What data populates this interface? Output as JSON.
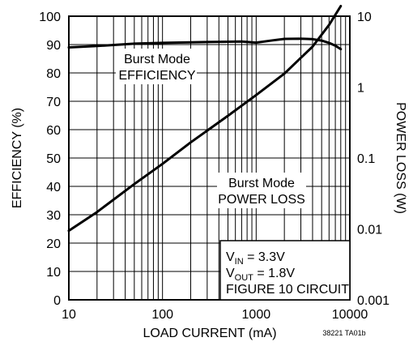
{
  "chart_data": {
    "type": "line",
    "x_axis": {
      "label": "LOAD CURRENT (mA)",
      "scale": "log",
      "range": [
        10,
        10000
      ],
      "tick_labels": [
        "10",
        "100",
        "1000",
        "10000"
      ]
    },
    "y_left": {
      "label": "EFFICIENCY (%)",
      "range": [
        0,
        100
      ],
      "tick_labels": [
        "0",
        "10",
        "20",
        "30",
        "40",
        "50",
        "60",
        "70",
        "80",
        "90",
        "100"
      ]
    },
    "y_right": {
      "label": "POWER LOSS (W)",
      "scale": "log",
      "range": [
        0.001,
        10
      ],
      "tick_labels": [
        "0.001",
        "0.01",
        "0.1",
        "1",
        "10"
      ]
    },
    "series": [
      {
        "axis": "left",
        "x": [
          10,
          20,
          50,
          100,
          200,
          500,
          700,
          1000,
          1500,
          2000,
          3000,
          4000,
          5000,
          6000,
          7000,
          8000
        ],
        "values": [
          89,
          89.5,
          90.3,
          90.6,
          90.8,
          91,
          91.1,
          90.7,
          91.5,
          92,
          92.1,
          91.9,
          91.4,
          90.6,
          89.6,
          88.4
        ]
      },
      {
        "axis": "right",
        "x": [
          10,
          20,
          50,
          100,
          200,
          500,
          1000,
          2000,
          4000,
          6000,
          8000
        ],
        "values": [
          0.00942,
          0.0173,
          0.0428,
          0.0828,
          0.166,
          0.394,
          0.772,
          1.55,
          3.73,
          7.52,
          13.9
        ]
      }
    ],
    "annotations": [
      [
        "Burst Mode",
        "EFFICIENCY"
      ],
      [
        "Burst Mode",
        "POWER LOSS"
      ]
    ],
    "legend_box": {
      "vin": {
        "main": "V",
        "sub": "IN",
        "rest": " = 3.3V"
      },
      "vout": {
        "main": "V",
        "sub": "OUT",
        "rest": " = 1.8V"
      },
      "figure": "FIGURE 10 CIRCUIT"
    },
    "part_label": "38221 TA01b",
    "grid": true
  }
}
